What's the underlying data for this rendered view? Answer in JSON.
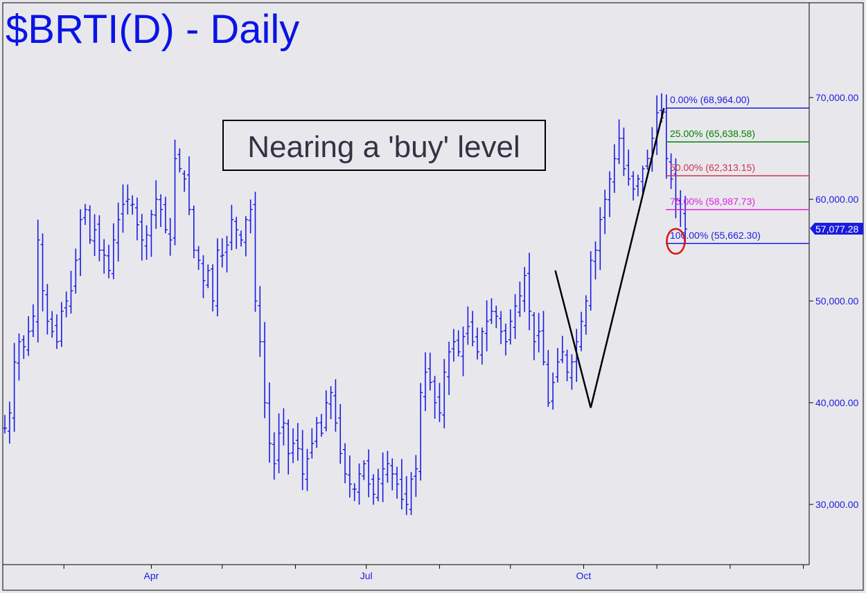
{
  "title": "$BRTI(D) - Daily",
  "annotation": "Nearing a 'buy' level",
  "last_price_label": "57,077.28",
  "colors": {
    "background": "#e8e8ec",
    "bars": "#1a1ae0",
    "text": "#0a14e6",
    "fib_0": "#1a1ae0",
    "fib_25": "#008000",
    "fib_50": "#d0304a",
    "fib_75": "#e020e0",
    "fib_100": "#1a1ae0",
    "pattern_line": "#000000",
    "circle": "#e01010"
  },
  "chart_data": {
    "type": "ohlc",
    "title": "$BRTI(D) - Daily",
    "xlabel": "",
    "ylabel": "",
    "ylim": [
      23000,
      80000
    ],
    "yticks": [
      30000,
      40000,
      50000,
      60000,
      70000
    ],
    "ytick_labels": [
      "30,000.00",
      "40,000.00",
      "50,000.00",
      "60,000.00",
      "70,000.00"
    ],
    "xticks": [
      "Apr",
      "Jul",
      "Oct"
    ],
    "x_tick_day_offsets": [
      62,
      153,
      245
    ],
    "grid": false,
    "last_price": 57077.28,
    "series_close": [
      37500,
      39000,
      44000,
      46000,
      45500,
      47000,
      48500,
      56000,
      51000,
      48000,
      47000,
      46000,
      49000,
      50000,
      51000,
      54000,
      58000,
      59000,
      56000,
      57000,
      55000,
      54500,
      53000,
      56000,
      58000,
      59500,
      60000,
      59500,
      57500,
      56000,
      56500,
      58500,
      60000,
      59000,
      57000,
      56000,
      64000,
      63000,
      62000,
      59000,
      55000,
      54000,
      52000,
      53000,
      50000,
      55000,
      54500,
      55500,
      58000,
      57000,
      56000,
      58000,
      59000,
      50000,
      46000,
      40000,
      36000,
      34000,
      37000,
      38000,
      35000,
      36000,
      35500,
      33000,
      34500,
      36000,
      38000,
      37000,
      40000,
      41000,
      38000,
      35000,
      33000,
      32000,
      31500,
      33000,
      34000,
      32000,
      31000,
      32500,
      33500,
      34000,
      33000,
      32000,
      30500,
      30000,
      32500,
      33500,
      41000,
      43000,
      42000,
      40000,
      39000,
      43000,
      45000,
      46000,
      45000,
      46500,
      47500,
      46000,
      45000,
      47000,
      48000,
      49000,
      48500,
      47000,
      46000,
      48000,
      49500,
      50500,
      52500,
      49000,
      46000,
      47000,
      44000,
      40000,
      42000,
      44000,
      45000,
      43000,
      44000,
      46000,
      48000,
      50000,
      54000,
      55000,
      58000,
      60000,
      62000,
      64000,
      66000,
      63000,
      62000,
      61000,
      62000,
      63000,
      64000,
      66000,
      68500,
      68000,
      64000,
      62000,
      60000,
      59000,
      57077.28
    ],
    "fib_levels": [
      {
        "label": "0.00% (68,964.00)",
        "value": 68964.0
      },
      {
        "label": "25.00% (65,638.58)",
        "value": 65638.58
      },
      {
        "label": "50.00% (62,313.15)",
        "value": 62313.15
      },
      {
        "label": "75.00% (58,987.73)",
        "value": 58987.73
      },
      {
        "label": "100.00% (55,662.30)",
        "value": 55662.3
      }
    ],
    "pattern_points": [
      {
        "day": 233,
        "value": 53000
      },
      {
        "day": 248,
        "value": 39500
      },
      {
        "day": 279,
        "value": 68964
      }
    ],
    "target_circle": {
      "day": 284,
      "value": 55662.3
    }
  }
}
